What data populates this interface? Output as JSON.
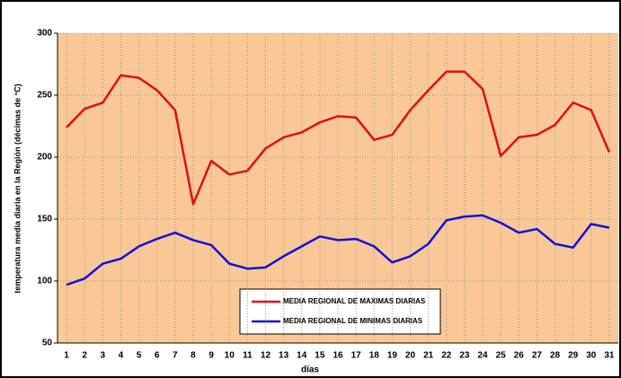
{
  "chart_data": {
    "type": "line",
    "xlabel": "días",
    "ylabel": "temperatura media diaria en la Región (décimas de °C)",
    "categories": [
      "1",
      "2",
      "3",
      "4",
      "5",
      "6",
      "7",
      "8",
      "9",
      "10",
      "11",
      "12",
      "13",
      "14",
      "15",
      "16",
      "17",
      "18",
      "19",
      "20",
      "21",
      "22",
      "23",
      "24",
      "25",
      "26",
      "27",
      "28",
      "29",
      "30",
      "31"
    ],
    "series": [
      {
        "name": "MEDIA REGIONAL DE MAXIMAS DIARIAS",
        "color": "#e01010",
        "values": [
          224,
          239,
          244,
          266,
          264,
          254,
          238,
          162,
          197,
          186,
          189,
          207,
          216,
          220,
          228,
          233,
          232,
          214,
          218,
          238,
          254,
          269,
          269,
          255,
          201,
          216,
          218,
          226,
          244,
          238,
          204
        ]
      },
      {
        "name": "MEDIA REGIONAL DE MINIMAS DIARIAS",
        "color": "#1010e0",
        "values": [
          97,
          102,
          114,
          118,
          128,
          134,
          139,
          133,
          129,
          114,
          110,
          111,
          120,
          128,
          136,
          133,
          134,
          128,
          115,
          120,
          130,
          149,
          152,
          153,
          147,
          139,
          142,
          130,
          127,
          146,
          143
        ]
      }
    ],
    "ylim": [
      50,
      300
    ],
    "yticks": [
      50,
      100,
      150,
      200,
      250,
      300
    ],
    "grid": true
  }
}
